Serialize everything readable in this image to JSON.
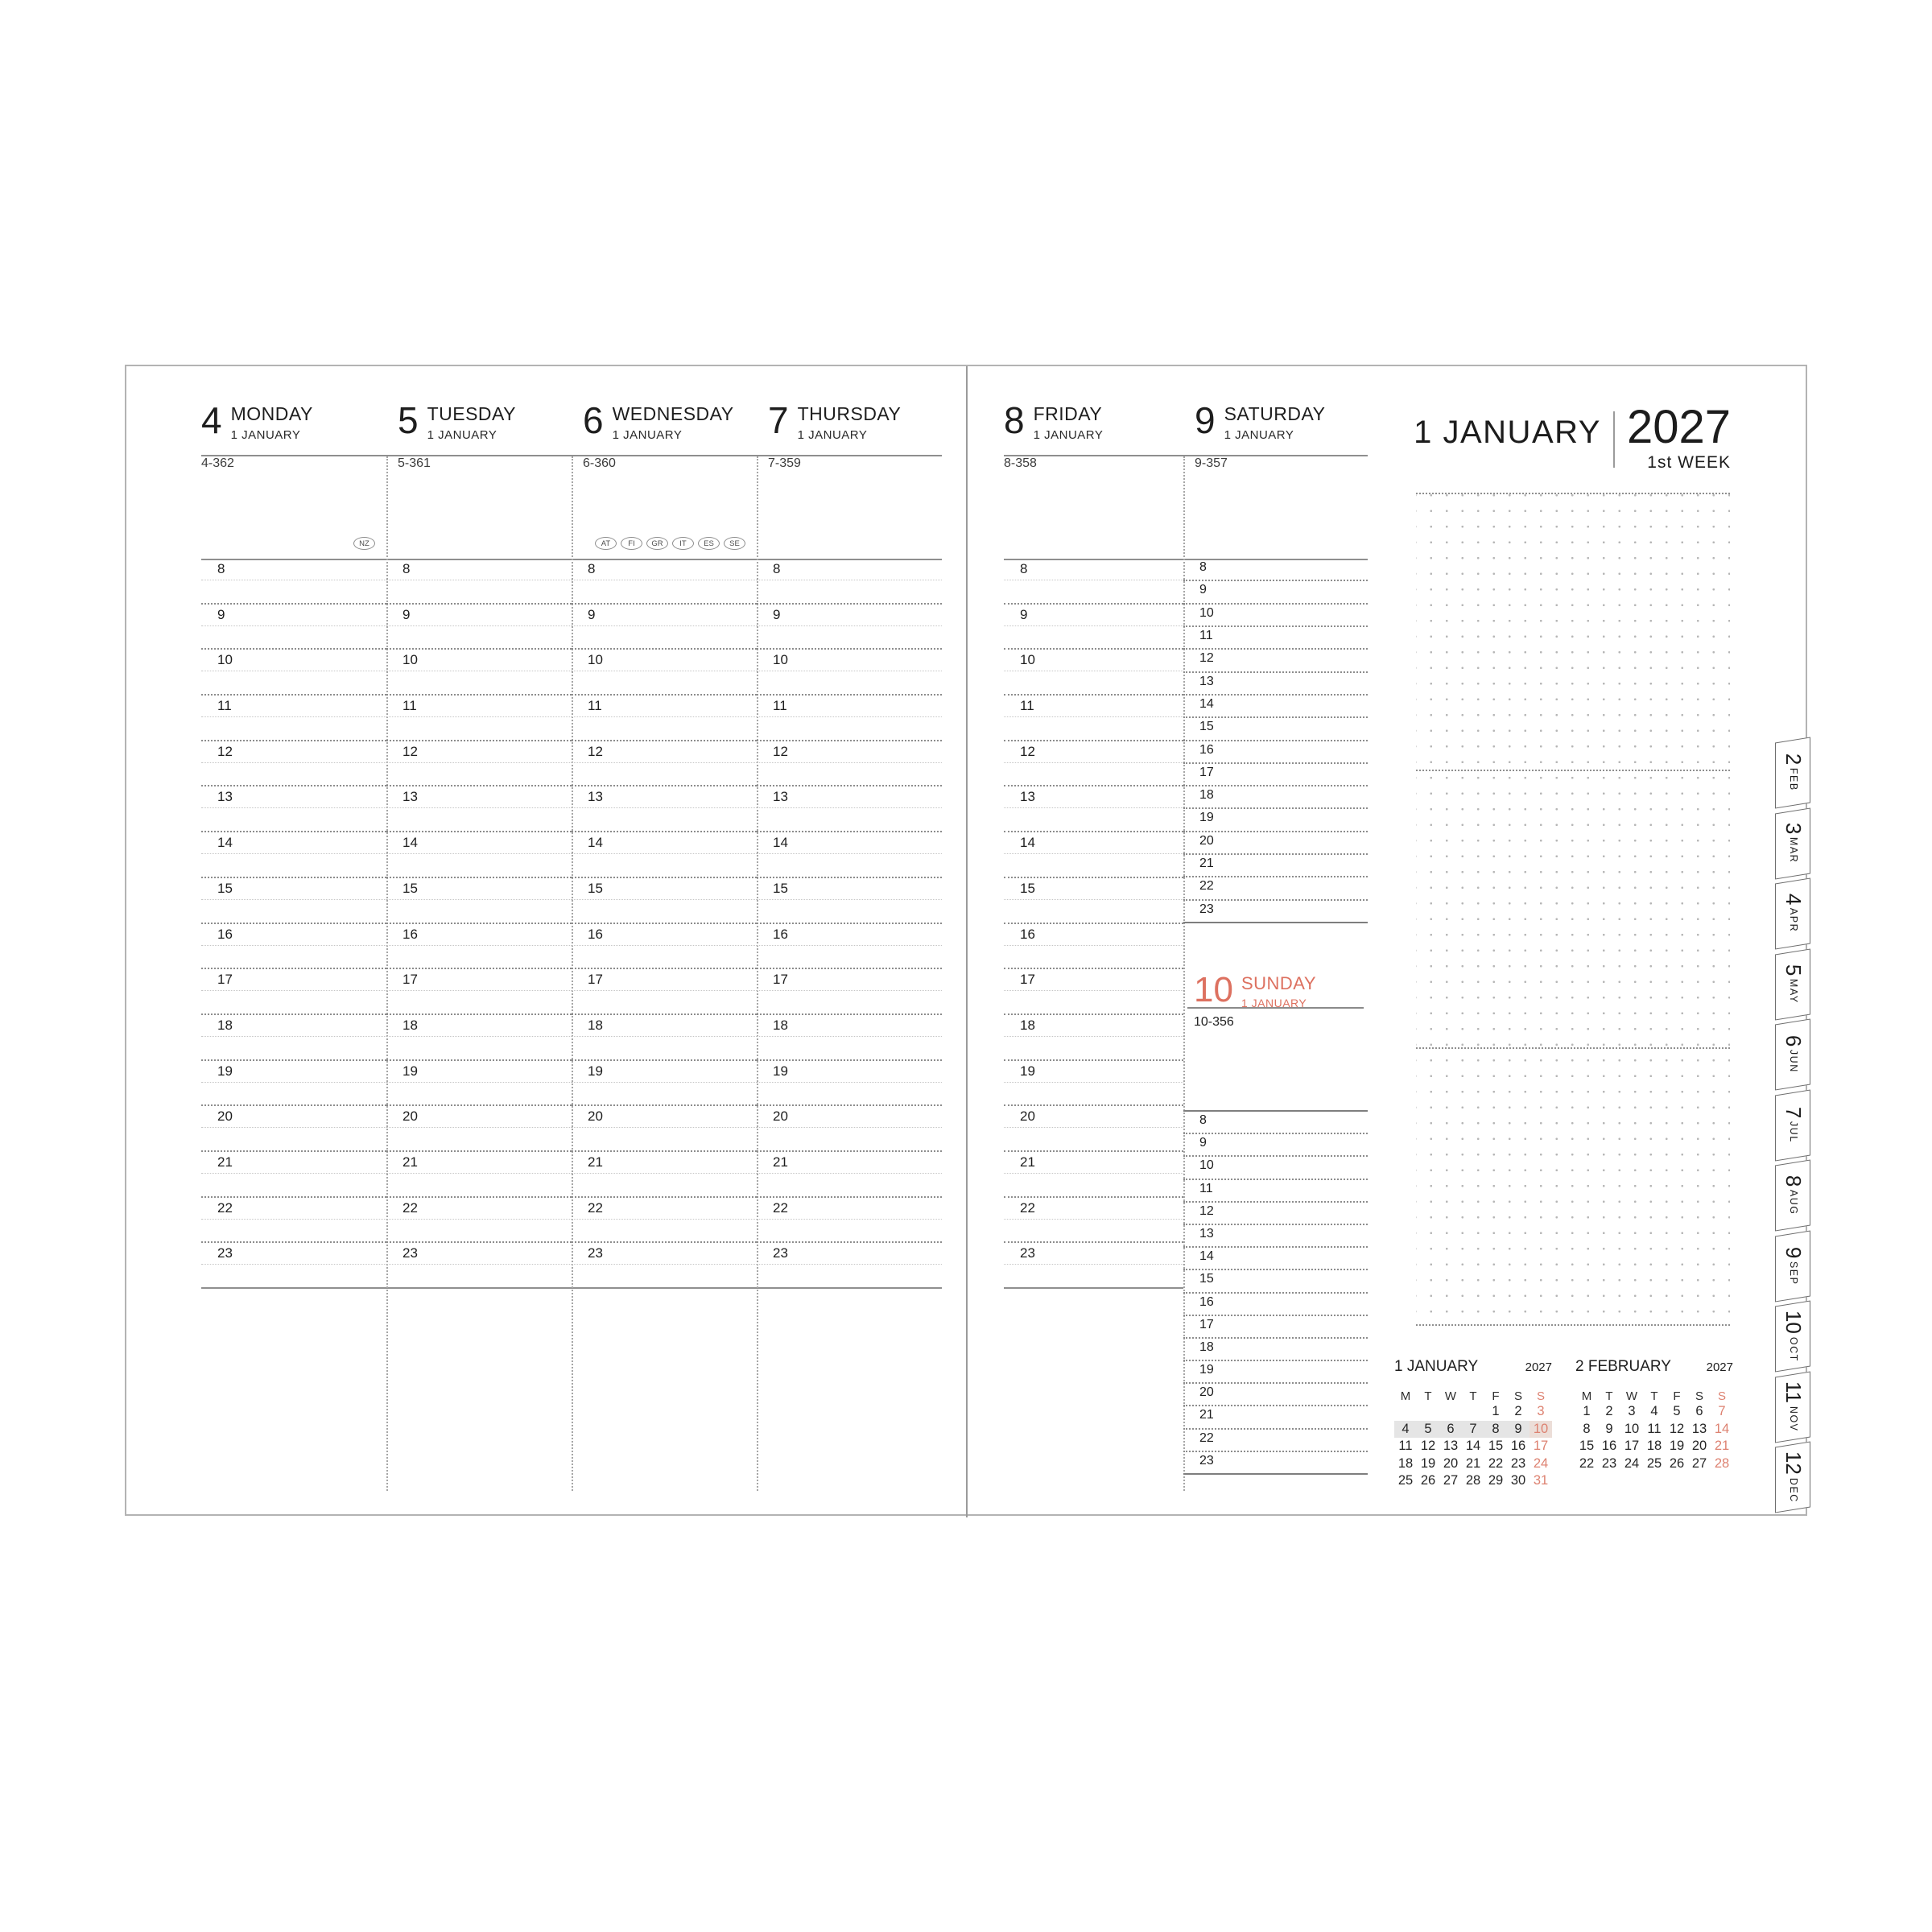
{
  "accent_color": "#dd7160",
  "highlight_color": "#e5e5e5",
  "hours": [
    "8",
    "9",
    "10",
    "11",
    "12",
    "13",
    "14",
    "15",
    "16",
    "17",
    "18",
    "19",
    "20",
    "21",
    "22",
    "23"
  ],
  "left_page": {
    "days": [
      {
        "num": "4",
        "name": "MONDAY",
        "month": "1 JANUARY",
        "counter": "4-362",
        "badges": [
          "NZ"
        ]
      },
      {
        "num": "5",
        "name": "TUESDAY",
        "month": "1 JANUARY",
        "counter": "5-361",
        "badges": []
      },
      {
        "num": "6",
        "name": "WEDNESDAY",
        "month": "1 JANUARY",
        "counter": "6-360",
        "badges": [
          "AT",
          "FI",
          "GR",
          "IT",
          "ES",
          "SE"
        ]
      },
      {
        "num": "7",
        "name": "THURSDAY",
        "month": "1 JANUARY",
        "counter": "7-359",
        "badges": []
      }
    ]
  },
  "right_page": {
    "days": [
      {
        "num": "8",
        "name": "FRIDAY",
        "month": "1 JANUARY",
        "counter": "8-358",
        "badges": []
      },
      {
        "num": "9",
        "name": "SATURDAY",
        "month": "1 JANUARY",
        "counter": "9-357",
        "badges": []
      }
    ],
    "sunday": {
      "num": "10",
      "name": "SUNDAY",
      "month": "1 JANUARY",
      "counter": "10-356"
    },
    "title": {
      "month": "1 JANUARY",
      "year": "2027",
      "week": "1st WEEK"
    }
  },
  "mini_calendars": [
    {
      "title": "1 JANUARY",
      "year": "2027",
      "dow": [
        "M",
        "T",
        "W",
        "T",
        "F",
        "S",
        "S"
      ],
      "weeks": [
        [
          "",
          "",
          "",
          "",
          "1",
          "2",
          "3"
        ],
        [
          "4",
          "5",
          "6",
          "7",
          "8",
          "9",
          "10"
        ],
        [
          "11",
          "12",
          "13",
          "14",
          "15",
          "16",
          "17"
        ],
        [
          "18",
          "19",
          "20",
          "21",
          "22",
          "23",
          "24"
        ],
        [
          "25",
          "26",
          "27",
          "28",
          "29",
          "30",
          "31"
        ]
      ],
      "highlight_week": 1
    },
    {
      "title": "2 FEBRUARY",
      "year": "2027",
      "dow": [
        "M",
        "T",
        "W",
        "T",
        "F",
        "S",
        "S"
      ],
      "weeks": [
        [
          "1",
          "2",
          "3",
          "4",
          "5",
          "6",
          "7"
        ],
        [
          "8",
          "9",
          "10",
          "11",
          "12",
          "13",
          "14"
        ],
        [
          "15",
          "16",
          "17",
          "18",
          "19",
          "20",
          "21"
        ],
        [
          "22",
          "23",
          "24",
          "25",
          "26",
          "27",
          "28"
        ]
      ],
      "highlight_week": -1
    }
  ],
  "tabs": [
    {
      "num": "2",
      "month": "FEB"
    },
    {
      "num": "3",
      "month": "MAR"
    },
    {
      "num": "4",
      "month": "APR"
    },
    {
      "num": "5",
      "month": "MAY"
    },
    {
      "num": "6",
      "month": "JUN"
    },
    {
      "num": "7",
      "month": "JUL"
    },
    {
      "num": "8",
      "month": "AUG"
    },
    {
      "num": "9",
      "month": "SEP"
    },
    {
      "num": "10",
      "month": "OCT"
    },
    {
      "num": "11",
      "month": "NOV"
    },
    {
      "num": "12",
      "month": "DEC"
    }
  ]
}
